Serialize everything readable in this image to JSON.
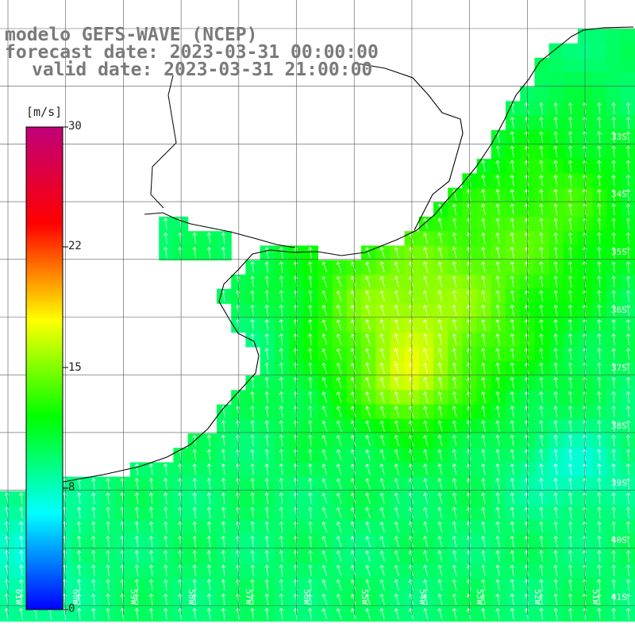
{
  "header": {
    "model": "modelo GEFS-WAVE (NCEP)",
    "forecast": "forecast date: 2023-03-31 00:00:00",
    "valid": "valid date: 2023-03-31 21:00:00"
  },
  "colorbar": {
    "unit": "[m/s]",
    "min": 0,
    "max": 30,
    "ticks": [
      "30",
      "22",
      "15",
      "8",
      "0"
    ],
    "colors": [
      "#0000ff",
      "#00ffff",
      "#00ff00",
      "#ffff00",
      "#ff0000",
      "#c0007a"
    ]
  },
  "lat_labels": [
    "33S",
    "34S",
    "35S",
    "36S",
    "37S",
    "38S",
    "39S",
    "40S",
    "41S"
  ],
  "lon_labels": [
    "61W",
    "60W",
    "59W",
    "58W",
    "57W",
    "56W",
    "55W",
    "54W",
    "53W",
    "52W",
    "51W"
  ],
  "colors": {
    "land": "#ffffff",
    "grid": "#555555",
    "coast": "#000000",
    "arrow": "#ffffff",
    "title": "#7a7a7a"
  }
}
